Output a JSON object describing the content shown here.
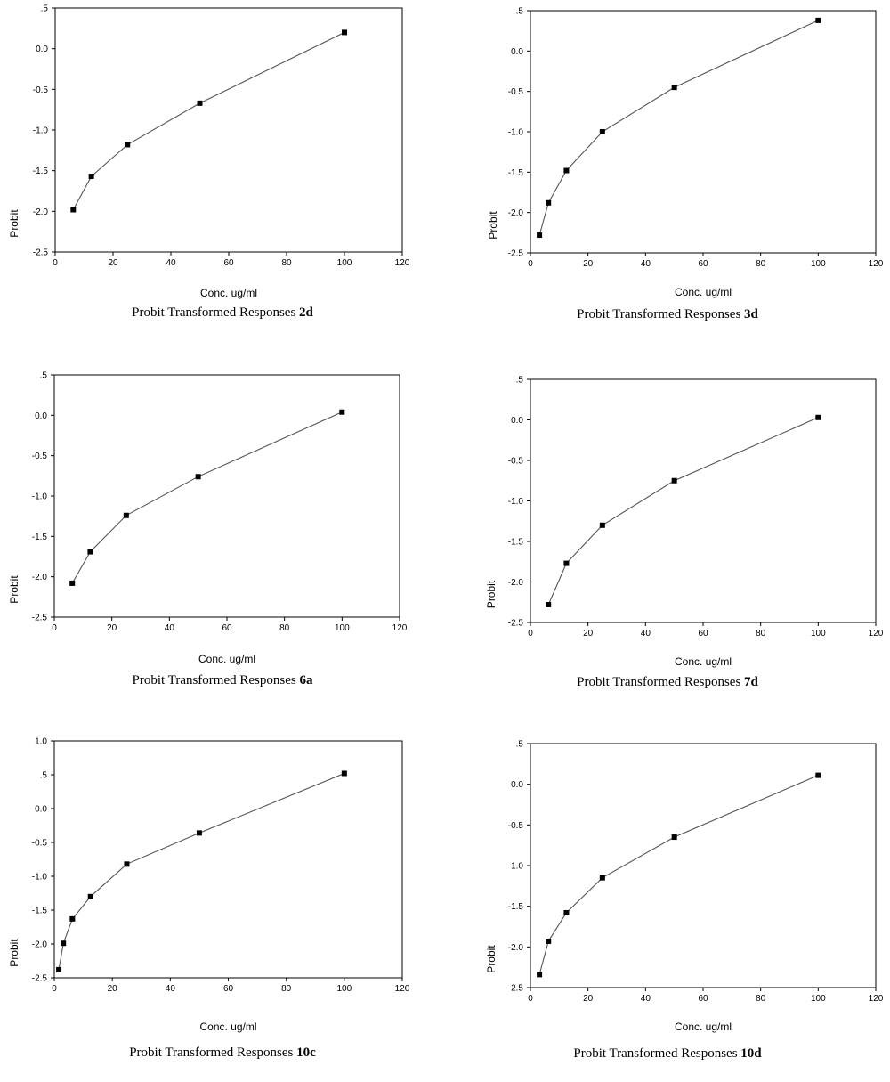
{
  "chart_data": [
    {
      "type": "line",
      "caption": "Probit Transformed Responses",
      "caption_suffix": "2d",
      "xlabel": "Conc. ug/ml",
      "ylabel": "Probit",
      "xlim": [
        0,
        120
      ],
      "ylim": [
        -2.5,
        0.5
      ],
      "xticks": [
        0,
        20,
        40,
        60,
        80,
        100,
        120
      ],
      "xtick_labels": [
        "0",
        "20",
        "40",
        "60",
        "80",
        "100",
        "120"
      ],
      "yticks": [
        -2.5,
        -2.0,
        -1.5,
        -1.0,
        -0.5,
        0.0,
        0.5
      ],
      "ytick_labels": [
        "-2.5",
        "-2.0",
        "-1.5",
        "-1.0",
        "-0.5",
        "0.0",
        ".5"
      ],
      "x": [
        6.25,
        12.5,
        25,
        50,
        100
      ],
      "y": [
        -1.98,
        -1.57,
        -1.18,
        -0.67,
        0.2
      ],
      "grid": false,
      "marker": "square"
    },
    {
      "type": "line",
      "caption": "Probit Transformed Responses",
      "caption_suffix": "3d",
      "xlabel": "Conc. ug/ml",
      "ylabel": "Probit",
      "xlim": [
        0,
        120
      ],
      "ylim": [
        -2.5,
        0.5
      ],
      "xticks": [
        0,
        20,
        40,
        60,
        80,
        100,
        120
      ],
      "xtick_labels": [
        "0",
        "20",
        "40",
        "60",
        "80",
        "100",
        "120"
      ],
      "yticks": [
        -2.5,
        -2.0,
        -1.5,
        -1.0,
        -0.5,
        0.0,
        0.5
      ],
      "ytick_labels": [
        "-2.5",
        "-2.0",
        "-1.5",
        "-1.0",
        "-0.5",
        "0.0",
        ".5"
      ],
      "x": [
        3.125,
        6.25,
        12.5,
        25,
        50,
        100
      ],
      "y": [
        -2.28,
        -1.88,
        -1.48,
        -1.0,
        -0.45,
        0.38
      ],
      "grid": false,
      "marker": "square"
    },
    {
      "type": "line",
      "caption": "Probit Transformed Responses",
      "caption_suffix": "6a",
      "xlabel": "Conc. ug/ml",
      "ylabel": "Probit",
      "xlim": [
        0,
        120
      ],
      "ylim": [
        -2.5,
        0.5
      ],
      "xticks": [
        0,
        20,
        40,
        60,
        80,
        100,
        120
      ],
      "xtick_labels": [
        "0",
        "20",
        "40",
        "60",
        "80",
        "100",
        "120"
      ],
      "yticks": [
        -2.5,
        -2.0,
        -1.5,
        -1.0,
        -0.5,
        0.0,
        0.5
      ],
      "ytick_labels": [
        "-2.5",
        "-2.0",
        "-1.5",
        "-1.0",
        "-0.5",
        "0.0",
        ".5"
      ],
      "x": [
        6.25,
        12.5,
        25,
        50,
        100
      ],
      "y": [
        -2.08,
        -1.69,
        -1.24,
        -0.76,
        0.04
      ],
      "grid": false,
      "marker": "square"
    },
    {
      "type": "line",
      "caption": "Probit Transformed Responses",
      "caption_suffix": "7d",
      "xlabel": "Conc. ug/ml",
      "ylabel": "Probit",
      "xlim": [
        0,
        120
      ],
      "ylim": [
        -2.5,
        0.5
      ],
      "xticks": [
        0,
        20,
        40,
        60,
        80,
        100,
        120
      ],
      "xtick_labels": [
        "0",
        "20",
        "40",
        "60",
        "80",
        "100",
        "120"
      ],
      "yticks": [
        -2.5,
        -2.0,
        -1.5,
        -1.0,
        -0.5,
        0.0,
        0.5
      ],
      "ytick_labels": [
        "-2.5",
        "-2.0",
        "-1.5",
        "-1.0",
        "-0.5",
        "0.0",
        ".5"
      ],
      "x": [
        6.25,
        12.5,
        25,
        50,
        100
      ],
      "y": [
        -2.28,
        -1.77,
        -1.3,
        -0.75,
        0.03
      ],
      "grid": false,
      "marker": "square"
    },
    {
      "type": "line",
      "caption": "Probit Transformed Responses",
      "caption_suffix": "10c",
      "xlabel": "Conc. ug/ml",
      "ylabel": "Probit",
      "xlim": [
        0,
        120
      ],
      "ylim": [
        -2.5,
        1.0
      ],
      "xticks": [
        0,
        20,
        40,
        60,
        80,
        100,
        120
      ],
      "xtick_labels": [
        "0",
        "20",
        "40",
        "60",
        "80",
        "100",
        "120"
      ],
      "yticks": [
        -2.5,
        -2.0,
        -1.5,
        -1.0,
        -0.5,
        0.0,
        0.5,
        1.0
      ],
      "ytick_labels": [
        "-2.5",
        "-2.0",
        "-1.5",
        "-1.0",
        "-0.5",
        "0.0",
        ".5",
        "1.0"
      ],
      "x": [
        1.5625,
        3.125,
        6.25,
        12.5,
        25,
        50,
        100
      ],
      "y": [
        -2.38,
        -1.99,
        -1.63,
        -1.3,
        -0.82,
        -0.36,
        0.52
      ],
      "grid": false,
      "marker": "square"
    },
    {
      "type": "line",
      "caption": "Probit Transformed Responses",
      "caption_suffix": "10d",
      "xlabel": "Conc. ug/ml",
      "ylabel": "Probit",
      "xlim": [
        0,
        120
      ],
      "ylim": [
        -2.5,
        0.5
      ],
      "xticks": [
        0,
        20,
        40,
        60,
        80,
        100,
        120
      ],
      "xtick_labels": [
        "0",
        "20",
        "40",
        "60",
        "80",
        "100",
        "120"
      ],
      "yticks": [
        -2.5,
        -2.0,
        -1.5,
        -1.0,
        -0.5,
        0.0,
        0.5
      ],
      "ytick_labels": [
        "-2.5",
        "-2.0",
        "-1.5",
        "-1.0",
        "-0.5",
        "0.0",
        ".5"
      ],
      "x": [
        3.125,
        6.25,
        12.5,
        25,
        50,
        100
      ],
      "y": [
        -2.34,
        -1.93,
        -1.58,
        -1.15,
        -0.65,
        0.11
      ],
      "grid": false,
      "marker": "square"
    }
  ]
}
